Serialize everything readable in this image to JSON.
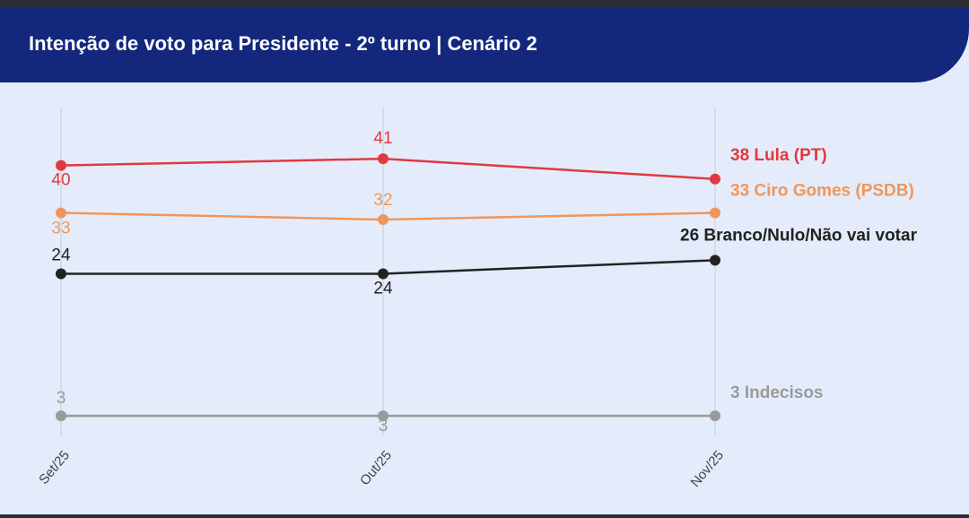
{
  "header": {
    "title": "Intenção de voto para Presidente - 2º turno | Cenário 2"
  },
  "chart_data": {
    "type": "line",
    "title": "Intenção de voto para Presidente - 2º turno | Cenário 2",
    "categories": [
      "Set/25",
      "Out/25",
      "Nov/25"
    ],
    "series": [
      {
        "name": "Lula (PT)",
        "values": [
          40,
          41,
          38
        ],
        "end_label": "38 Lula (PT)",
        "color": "#e03a3e",
        "point_labels": [
          "40",
          "41",
          ""
        ]
      },
      {
        "name": "Ciro Gomes (PSDB)",
        "values": [
          33,
          32,
          33
        ],
        "end_label": "33 Ciro Gomes (PSDB)",
        "color": "#f0965a",
        "point_labels": [
          "33",
          "32",
          ""
        ]
      },
      {
        "name": "Branco/Nulo/Não vai votar",
        "values": [
          24,
          24,
          26
        ],
        "end_label": "26 Branco/Nulo/Não vai votar",
        "color": "#222222",
        "point_labels": [
          "24",
          "24",
          ""
        ]
      },
      {
        "name": "Indecisos",
        "values": [
          3,
          3,
          3
        ],
        "end_label": "3 Indecisos",
        "color": "#9a9a9a",
        "point_labels": [
          "3",
          "3",
          ""
        ]
      }
    ],
    "ylim": [
      0,
      45
    ],
    "grid": "vertical",
    "legend": "end-of-line labels"
  }
}
